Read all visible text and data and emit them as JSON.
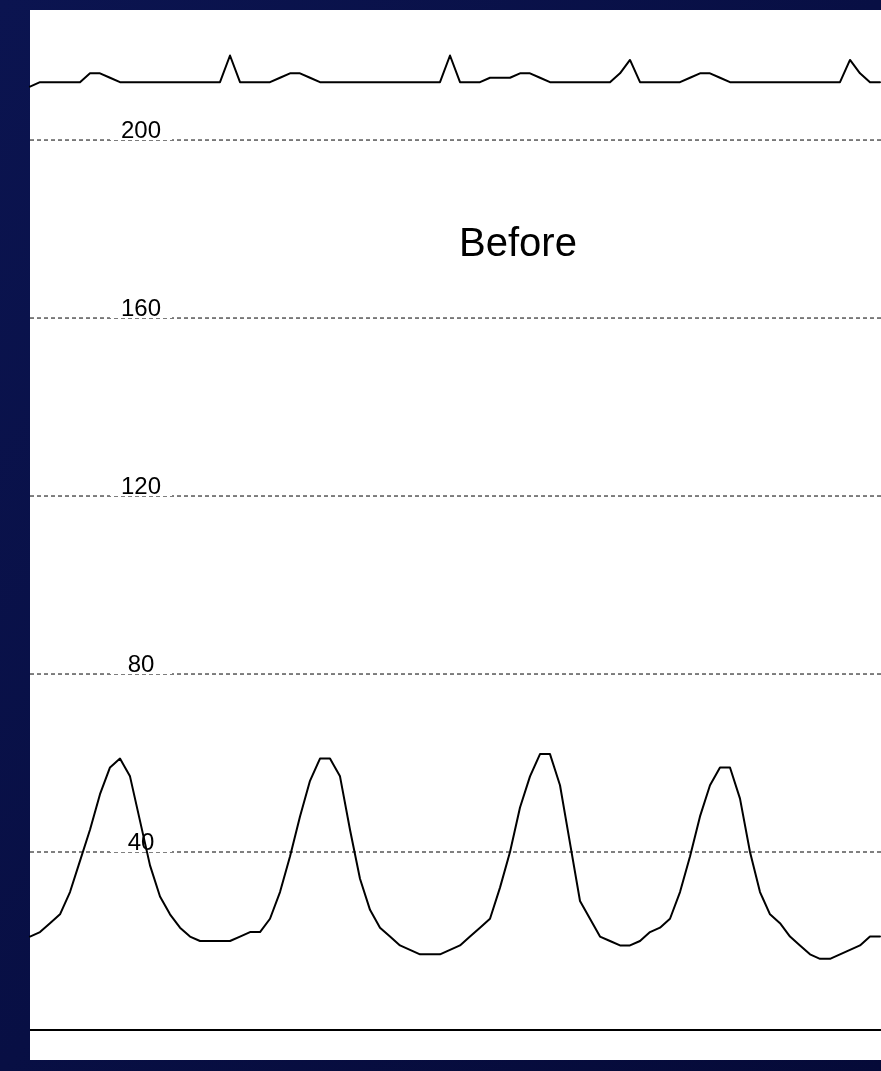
{
  "chart_data": {
    "type": "line",
    "annotations": [
      "Before"
    ],
    "categories": [
      null,
      null,
      null,
      null,
      null,
      null,
      null,
      null,
      null,
      null,
      null,
      null,
      null,
      null,
      null,
      null,
      null,
      null,
      null,
      null,
      null,
      null,
      null,
      null,
      null,
      null,
      null,
      null,
      null,
      null,
      null,
      null,
      null,
      null,
      null,
      null,
      null,
      null,
      null,
      null,
      null,
      null,
      null,
      null,
      null,
      null,
      null,
      null,
      null,
      null,
      null,
      null,
      null,
      null,
      null,
      null,
      null,
      null,
      null,
      null,
      null,
      null,
      null,
      null,
      null,
      null,
      null,
      null,
      null,
      null,
      null,
      null,
      null,
      null,
      null,
      null,
      null,
      null,
      null,
      null,
      null,
      null,
      null,
      null,
      null,
      null
    ],
    "series": [
      {
        "color": "#000000",
        "values": [
          212,
          213,
          213,
          213,
          213,
          213,
          215,
          215,
          214,
          213,
          213,
          213,
          213,
          213,
          213,
          213,
          213,
          213,
          213,
          213,
          219,
          213,
          213,
          213,
          213,
          214,
          215,
          215,
          214,
          213,
          213,
          213,
          213,
          213,
          213,
          213,
          213,
          213,
          213,
          213,
          213,
          213,
          219,
          213,
          213,
          213,
          214,
          214,
          214,
          215,
          215,
          214,
          213,
          213,
          213,
          213,
          213,
          213,
          213,
          215,
          218,
          213,
          213,
          213,
          213,
          213,
          214,
          215,
          215,
          214,
          213,
          213,
          213,
          213,
          213,
          213,
          213,
          213,
          213,
          213,
          213,
          213,
          218,
          215,
          213,
          213
        ]
      },
      {
        "color": "#000000",
        "values": [
          21,
          22,
          24,
          26,
          31,
          38,
          45,
          53,
          59,
          61,
          57,
          47,
          37,
          30,
          26,
          23,
          21,
          20,
          20,
          20,
          20,
          21,
          22,
          22,
          25,
          31,
          39,
          48,
          56,
          61,
          61,
          57,
          45,
          34,
          27,
          23,
          21,
          19,
          18,
          17,
          17,
          17,
          18,
          19,
          21,
          23,
          25,
          32,
          40,
          50,
          57,
          62,
          62,
          55,
          42,
          29,
          25,
          21,
          20,
          19,
          19,
          20,
          22,
          23,
          25,
          31,
          39,
          48,
          55,
          59,
          59,
          52,
          40,
          31,
          26,
          24,
          21,
          19,
          17,
          16,
          16,
          17,
          18,
          19,
          21,
          21
        ]
      }
    ],
    "ylim": [
      0,
      229
    ],
    "yticks": [
      40,
      80,
      120,
      160,
      200
    ],
    "grid": "y",
    "line_style": "solid"
  }
}
